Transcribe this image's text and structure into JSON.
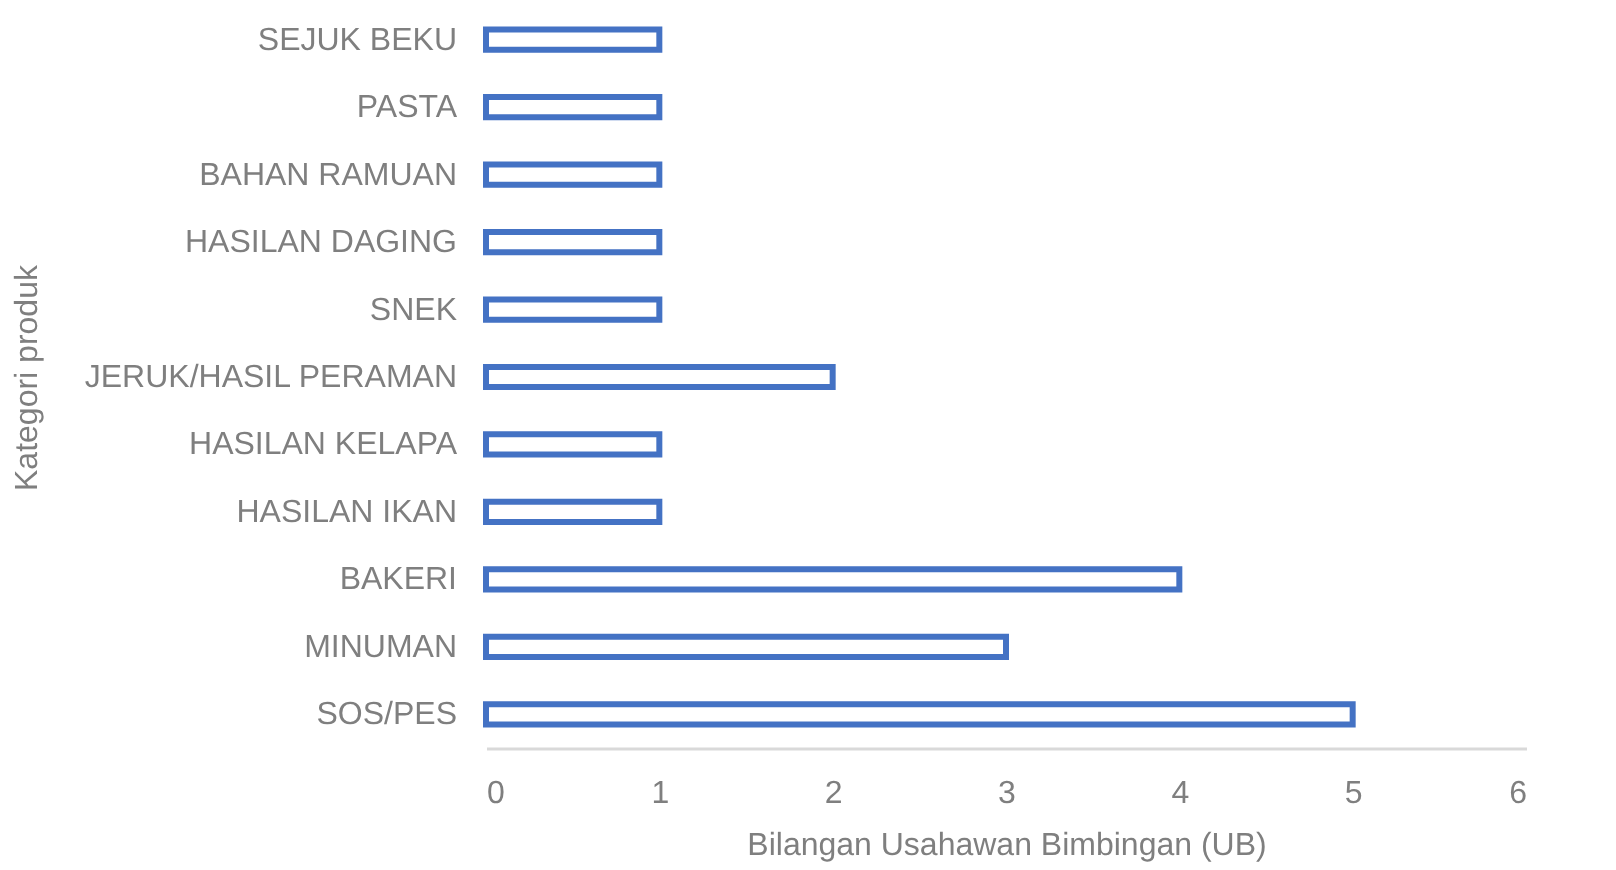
{
  "chart_data": {
    "type": "bar",
    "orientation": "horizontal",
    "xlabel": "Bilangan Usahawan Bimbingan (UB)",
    "ylabel": "Kategori produk",
    "categories": [
      "SEJUK BEKU",
      "PASTA",
      "BAHAN RAMUAN",
      "HASILAN DAGING",
      "SNEK",
      "JERUK/HASIL PERAMAN",
      "HASILAN KELAPA",
      "HASILAN IKAN",
      "BAKERI",
      "MINUMAN",
      "SOS/PES"
    ],
    "values": [
      1,
      1,
      1,
      1,
      1,
      2,
      1,
      1,
      4,
      3,
      5
    ],
    "color": "#4472c4",
    "xlim": [
      0,
      6
    ],
    "xticks": [
      0,
      1,
      2,
      3,
      4,
      5,
      6
    ]
  }
}
